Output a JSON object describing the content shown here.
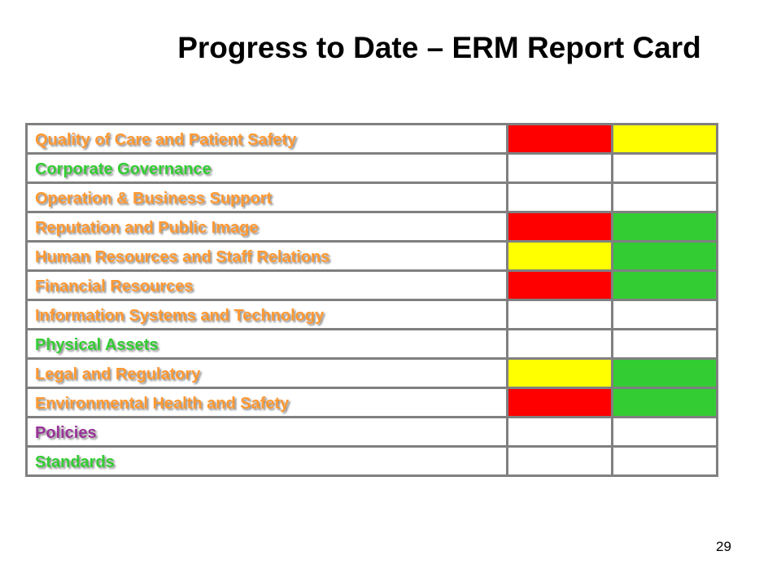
{
  "slide": {
    "title": "Progress to Date – ERM Report Card",
    "page_number": "29"
  },
  "colors": {
    "orange_label": "#ff9933",
    "green_label": "#33cc33",
    "purple_label": "#993399",
    "status_red": "#ff0000",
    "status_yellow": "#ffff00",
    "status_green": "#33cc33",
    "status_empty": "#ffffff",
    "border": "#808080"
  },
  "report_card": {
    "rows": [
      {
        "label": "Quality of Care and Patient Safety",
        "label_color": "#ff9933",
        "status": [
          "red",
          "yellow"
        ]
      },
      {
        "label": "Corporate Governance",
        "label_color": "#33cc33",
        "status": [
          "none",
          "none"
        ]
      },
      {
        "label": "Operation & Business Support",
        "label_color": "#ff9933",
        "status": [
          "none",
          "none"
        ]
      },
      {
        "label": "Reputation and Public Image",
        "label_color": "#ff9933",
        "status": [
          "red",
          "green"
        ]
      },
      {
        "label": "Human Resources and Staff Relations",
        "label_color": "#ff9933",
        "status": [
          "yellow",
          "green"
        ]
      },
      {
        "label": "Financial Resources",
        "label_color": "#ff9933",
        "status": [
          "red",
          "green"
        ]
      },
      {
        "label": "Information Systems and Technology",
        "label_color": "#ff9933",
        "status": [
          "none",
          "none"
        ]
      },
      {
        "label": "Physical Assets",
        "label_color": "#33cc33",
        "status": [
          "none",
          "none"
        ]
      },
      {
        "label": "Legal and Regulatory",
        "label_color": "#ff9933",
        "status": [
          "yellow",
          "green"
        ]
      },
      {
        "label": "Environmental Health and Safety",
        "label_color": "#ff9933",
        "status": [
          "red",
          "green"
        ]
      },
      {
        "label": "Policies",
        "label_color": "#993399",
        "status": [
          "none",
          "none"
        ]
      },
      {
        "label": "Standards",
        "label_color": "#33cc33",
        "status": [
          "none",
          "none"
        ]
      }
    ]
  }
}
